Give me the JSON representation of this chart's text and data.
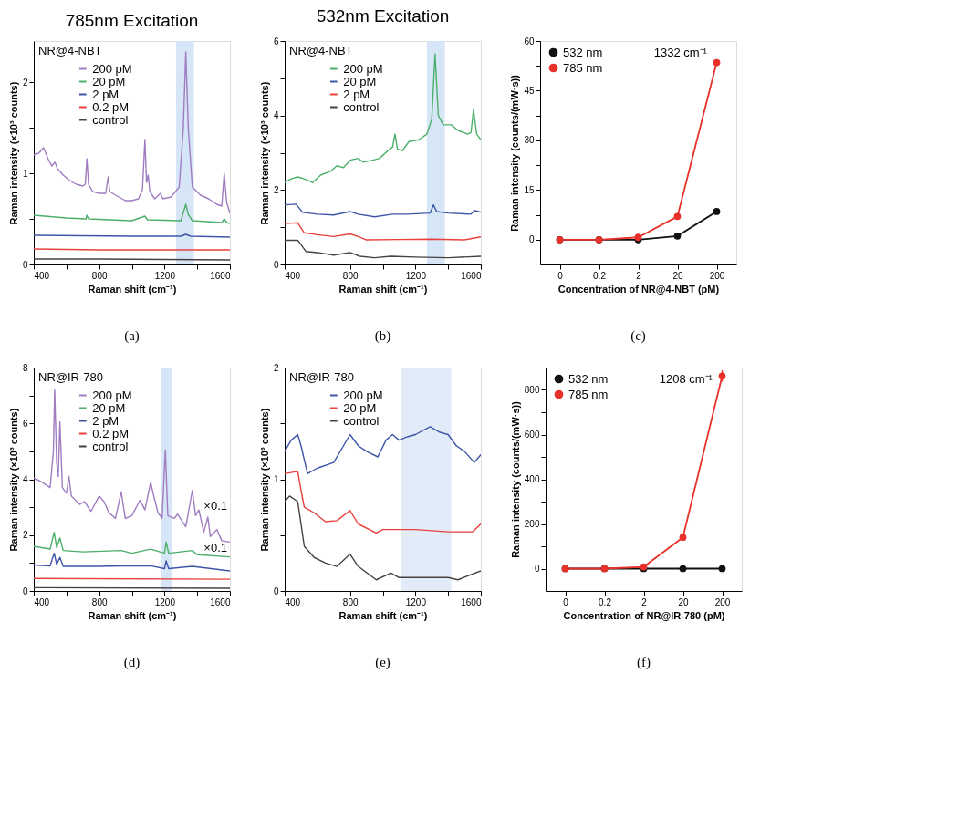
{
  "chart_data": [
    {
      "type": "line",
      "title": "785nm Excitation",
      "xlabel": "Raman shift (cm⁻¹)",
      "ylabel": "Raman intensity (×10³ counts)",
      "xlim": [
        400,
        1600
      ],
      "xticks": [
        400,
        {
          "value": 600,
          "label": null
        },
        800,
        {
          "value": 1000,
          "label": null
        },
        1200,
        {
          "value": 1400,
          "label": null
        },
        1600
      ],
      "ylim": [
        0,
        2.45
      ],
      "yticks": [
        0,
        {
          "value": 0.5,
          "label": null
        },
        1,
        {
          "value": 1.5,
          "label": null
        },
        2
      ],
      "legend": "top",
      "annotations": [
        "NR@4-NBT",
        "(a)"
      ],
      "bands": [
        {
          "axis": "x",
          "from": 1270,
          "to": 1380,
          "color": "#d6e6f7"
        }
      ],
      "series": [
        {
          "name": "200 pM",
          "color": "#a07cc0",
          "x": [
            400,
            430,
            460,
            490,
            510,
            530,
            545,
            580,
            620,
            660,
            700,
            715,
            725,
            735,
            760,
            800,
            840,
            855,
            865,
            900,
            960,
            1000,
            1040,
            1065,
            1080,
            1090,
            1100,
            1110,
            1140,
            1175,
            1190,
            1240,
            1290,
            1315,
            1330,
            1345,
            1370,
            1420,
            1470,
            1520,
            1550,
            1565,
            1580,
            1600
          ],
          "values": [
            1.2,
            1.22,
            1.28,
            1.15,
            1.08,
            1.12,
            1.05,
            0.98,
            0.92,
            0.88,
            0.86,
            0.88,
            1.16,
            0.88,
            0.8,
            0.78,
            0.78,
            0.96,
            0.8,
            0.76,
            0.7,
            0.7,
            0.72,
            0.82,
            1.37,
            0.9,
            0.98,
            0.8,
            0.72,
            0.78,
            0.72,
            0.74,
            0.85,
            1.5,
            2.33,
            1.5,
            0.85,
            0.76,
            0.72,
            0.66,
            0.64,
            1.0,
            0.68,
            0.56
          ]
        },
        {
          "name": "20 pM",
          "color": "#4caf6a",
          "x": [
            400,
            600,
            720,
            725,
            735,
            1000,
            1080,
            1095,
            1300,
            1320,
            1330,
            1345,
            1370,
            1550,
            1565,
            1580,
            1600
          ],
          "values": [
            0.54,
            0.51,
            0.5,
            0.54,
            0.5,
            0.48,
            0.53,
            0.49,
            0.48,
            0.6,
            0.66,
            0.55,
            0.48,
            0.46,
            0.5,
            0.46,
            0.45
          ]
        },
        {
          "name": "2 pM",
          "color": "#3f55a8",
          "x": [
            400,
            1000,
            1300,
            1330,
            1360,
            1600
          ],
          "values": [
            0.32,
            0.31,
            0.31,
            0.33,
            0.31,
            0.3
          ]
        },
        {
          "name": "0.2 pM",
          "color": "#e8413c",
          "x": [
            400,
            800,
            1600
          ],
          "values": [
            0.17,
            0.16,
            0.16
          ]
        },
        {
          "name": "control",
          "color": "#4a4040",
          "x": [
            400,
            800,
            1600
          ],
          "values": [
            0.06,
            0.06,
            0.05
          ]
        }
      ]
    },
    {
      "type": "line",
      "title": "532nm Excitation",
      "xlabel": "Raman shift (cm⁻¹)",
      "ylabel": "Raman intensity (×10³ counts)",
      "xlim": [
        400,
        1600
      ],
      "xticks": [
        400,
        {
          "value": 600,
          "label": null
        },
        800,
        {
          "value": 1000,
          "label": null
        },
        1200,
        {
          "value": 1400,
          "label": null
        },
        1600
      ],
      "ylim": [
        0,
        6
      ],
      "yticks": [
        0,
        {
          "value": 1,
          "label": null
        },
        2,
        {
          "value": 3,
          "label": null
        },
        4,
        {
          "value": 5,
          "label": null
        },
        6
      ],
      "legend": "top",
      "annotations": [
        "NR@4-NBT",
        "(b)"
      ],
      "bands": [
        {
          "axis": "x",
          "from": 1270,
          "to": 1380,
          "color": "#d6e6f7"
        }
      ],
      "series": [
        {
          "name": "200 pM",
          "color": "#4caf6a",
          "x": [
            400,
            440,
            480,
            520,
            570,
            620,
            680,
            720,
            760,
            800,
            850,
            880,
            940,
            980,
            1030,
            1060,
            1075,
            1090,
            1120,
            1160,
            1220,
            1270,
            1300,
            1320,
            1340,
            1370,
            1420,
            1460,
            1520,
            1540,
            1555,
            1575,
            1600
          ],
          "values": [
            2.2,
            2.3,
            2.35,
            2.3,
            2.2,
            2.4,
            2.5,
            2.65,
            2.6,
            2.8,
            2.85,
            2.75,
            2.8,
            2.85,
            3.05,
            3.15,
            3.5,
            3.1,
            3.05,
            3.3,
            3.35,
            3.5,
            3.9,
            5.65,
            4.0,
            3.75,
            3.75,
            3.6,
            3.5,
            3.55,
            4.15,
            3.5,
            3.35
          ]
        },
        {
          "name": "20 pM",
          "color": "#3f55a8",
          "x": [
            400,
            470,
            510,
            600,
            700,
            800,
            850,
            950,
            1060,
            1150,
            1290,
            1310,
            1330,
            1400,
            1540,
            1560,
            1600
          ],
          "values": [
            1.6,
            1.62,
            1.4,
            1.35,
            1.33,
            1.42,
            1.35,
            1.28,
            1.35,
            1.35,
            1.38,
            1.6,
            1.42,
            1.38,
            1.35,
            1.45,
            1.4
          ]
        },
        {
          "name": "2 pM",
          "color": "#e8413c",
          "x": [
            400,
            480,
            520,
            600,
            700,
            800,
            850,
            900,
            1100,
            1300,
            1500,
            1600
          ],
          "values": [
            1.1,
            1.12,
            0.85,
            0.8,
            0.75,
            0.82,
            0.75,
            0.66,
            0.67,
            0.68,
            0.66,
            0.74
          ]
        },
        {
          "name": "control",
          "color": "#4a4040",
          "x": [
            400,
            480,
            530,
            600,
            700,
            800,
            860,
            950,
            1050,
            1200,
            1400,
            1600
          ],
          "values": [
            0.65,
            0.65,
            0.35,
            0.32,
            0.25,
            0.32,
            0.22,
            0.18,
            0.22,
            0.2,
            0.18,
            0.22
          ]
        }
      ]
    },
    {
      "type": "line",
      "xlabel": "Concentration of NR@4-NBT (pM)",
      "ylabel": "Raman intensity (counts/(mW·s))",
      "categories": [
        "0",
        "0.2",
        "2",
        "20",
        "200"
      ],
      "ylim": [
        -7.5,
        60
      ],
      "yticks": [
        0,
        {
          "value": 7.5,
          "label": null
        },
        15,
        {
          "value": 22.5,
          "label": null
        },
        30,
        {
          "value": 37.5,
          "label": null
        },
        45,
        {
          "value": 52.5,
          "label": null
        },
        60
      ],
      "legend": "top left",
      "marker": "circle",
      "annotations": [
        "1332 cm⁻¹",
        "(c)"
      ],
      "series": [
        {
          "name": "532 nm",
          "color": "#111111",
          "values": [
            0,
            0,
            0,
            1.1,
            8.5
          ],
          "errors": [
            null,
            null,
            null,
            null,
            0.7
          ]
        },
        {
          "name": "785 nm",
          "color": "#e8312a",
          "values": [
            0,
            0,
            0.7,
            7,
            53.5
          ],
          "errors": [
            null,
            null,
            null,
            null,
            0.6
          ]
        }
      ]
    },
    {
      "type": "line",
      "xlabel": "Raman shift (cm⁻¹)",
      "ylabel": "Raman intensity (×10³ counts)",
      "xlim": [
        400,
        1600
      ],
      "xticks": [
        400,
        {
          "value": 600,
          "label": null
        },
        800,
        {
          "value": 1000,
          "label": null
        },
        1200,
        {
          "value": 1400,
          "label": null
        },
        1600
      ],
      "ylim": [
        0,
        8
      ],
      "yticks": [
        0,
        {
          "value": 1,
          "label": null
        },
        2,
        {
          "value": 3,
          "label": null
        },
        4,
        {
          "value": 5,
          "label": null
        },
        6,
        {
          "value": 7,
          "label": null
        },
        8
      ],
      "legend": "top",
      "annotations": [
        "NR@IR-780",
        "×0.1",
        "×0.1",
        "(d)"
      ],
      "bands": [
        {
          "axis": "x",
          "from": 1180,
          "to": 1245,
          "color": "#d6e6f7"
        }
      ],
      "series": [
        {
          "name": "200 pM",
          "color": "#a07cc0",
          "x": [
            400,
            450,
            500,
            520,
            528,
            540,
            550,
            560,
            575,
            600,
            615,
            630,
            680,
            710,
            750,
            800,
            830,
            860,
            900,
            935,
            960,
            1000,
            1050,
            1080,
            1115,
            1130,
            1160,
            1185,
            1205,
            1220,
            1260,
            1280,
            1330,
            1370,
            1390,
            1410,
            1440,
            1465,
            1480,
            1520,
            1550,
            1600
          ],
          "values": [
            4.05,
            3.9,
            3.7,
            5.0,
            7.2,
            4.6,
            4.1,
            6.05,
            3.7,
            3.5,
            4.1,
            3.4,
            3.1,
            3.2,
            2.85,
            3.4,
            3.2,
            2.8,
            2.6,
            3.55,
            2.6,
            2.7,
            3.25,
            2.9,
            3.9,
            3.5,
            2.8,
            2.6,
            5.05,
            2.7,
            2.6,
            2.75,
            2.3,
            3.6,
            2.7,
            2.9,
            2.1,
            2.65,
            1.95,
            2.2,
            1.8,
            1.75
          ]
        },
        {
          "name": "20 pM",
          "color": "#4caf6a",
          "x": [
            400,
            500,
            525,
            540,
            560,
            580,
            700,
            935,
            1000,
            1115,
            1200,
            1210,
            1225,
            1370,
            1400,
            1600
          ],
          "values": [
            1.6,
            1.5,
            2.1,
            1.55,
            1.9,
            1.45,
            1.4,
            1.45,
            1.35,
            1.5,
            1.35,
            1.75,
            1.35,
            1.45,
            1.3,
            1.22
          ]
        },
        {
          "name": "2 pM",
          "color": "#3f55a8",
          "x": [
            400,
            500,
            525,
            540,
            560,
            580,
            800,
            935,
            1115,
            1200,
            1210,
            1225,
            1370,
            1600
          ],
          "values": [
            0.93,
            0.9,
            1.35,
            0.95,
            1.2,
            0.88,
            0.88,
            0.9,
            0.9,
            0.8,
            1.08,
            0.8,
            0.88,
            0.72
          ]
        },
        {
          "name": "0.2 pM",
          "color": "#e8413c",
          "x": [
            400,
            1600
          ],
          "values": [
            0.45,
            0.42
          ]
        },
        {
          "name": "control",
          "color": "#4a4040",
          "x": [
            400,
            1600
          ],
          "values": [
            0.12,
            0.1
          ]
        }
      ]
    },
    {
      "type": "line",
      "xlabel": "Raman shift (cm⁻¹)",
      "ylabel": "Raman intensity (×10³ counts)",
      "xlim": [
        400,
        1600
      ],
      "xticks": [
        400,
        {
          "value": 600,
          "label": null
        },
        800,
        {
          "value": 1000,
          "label": null
        },
        1200,
        {
          "value": 1400,
          "label": null
        },
        1600
      ],
      "ylim": [
        0,
        2
      ],
      "yticks": [
        0,
        {
          "value": 0.5,
          "label": null
        },
        1,
        {
          "value": 1.5,
          "label": null
        },
        2
      ],
      "legend": "top",
      "annotations": [
        "NR@IR-780",
        "(e)"
      ],
      "bands": [
        {
          "axis": "x",
          "from": 1110,
          "to": 1420,
          "color": "#e1ecf8"
        }
      ],
      "series": [
        {
          "name": "200 pM",
          "color": "#3f55a8",
          "x": [
            400,
            440,
            480,
            500,
            540,
            600,
            700,
            760,
            800,
            850,
            900,
            970,
            1020,
            1060,
            1100,
            1150,
            1200,
            1290,
            1350,
            1400,
            1450,
            1500,
            1560,
            1600
          ],
          "values": [
            1.25,
            1.35,
            1.4,
            1.3,
            1.05,
            1.1,
            1.15,
            1.3,
            1.4,
            1.3,
            1.25,
            1.2,
            1.35,
            1.4,
            1.35,
            1.38,
            1.4,
            1.47,
            1.42,
            1.4,
            1.3,
            1.25,
            1.15,
            1.22
          ]
        },
        {
          "name": "20 pM",
          "color": "#e8413c",
          "x": [
            400,
            480,
            500,
            520,
            580,
            650,
            720,
            800,
            850,
            960,
            1000,
            1200,
            1400,
            1550,
            1600
          ],
          "values": [
            1.05,
            1.07,
            0.9,
            0.75,
            0.7,
            0.62,
            0.63,
            0.72,
            0.6,
            0.52,
            0.55,
            0.55,
            0.53,
            0.53,
            0.6
          ]
        },
        {
          "name": "control",
          "color": "#4a4040",
          "x": [
            400,
            430,
            480,
            520,
            580,
            650,
            720,
            800,
            850,
            960,
            1050,
            1100,
            1400,
            1460,
            1600
          ],
          "values": [
            0.8,
            0.85,
            0.8,
            0.4,
            0.3,
            0.25,
            0.22,
            0.33,
            0.22,
            0.1,
            0.16,
            0.12,
            0.12,
            0.1,
            0.18
          ]
        }
      ]
    },
    {
      "type": "line",
      "xlabel": "Concentration of NR@IR-780 (pM)",
      "ylabel": "Raman intensity (counts/(mW·s))",
      "categories": [
        "0",
        "0.2",
        "2",
        "20",
        "200"
      ],
      "ylim": [
        -100,
        900
      ],
      "yticks": [
        0,
        {
          "value": 100,
          "label": null
        },
        200,
        {
          "value": 300,
          "label": null
        },
        400,
        {
          "value": 500,
          "label": null
        },
        600,
        {
          "value": 700,
          "label": null
        },
        800
      ],
      "legend": "top left",
      "marker": "circle",
      "annotations": [
        "1208 cm⁻¹",
        "(f)"
      ],
      "series": [
        {
          "name": "532 nm",
          "color": "#111111",
          "values": [
            0,
            0,
            0,
            0,
            0
          ]
        },
        {
          "name": "785 nm",
          "color": "#e8312a",
          "values": [
            0,
            0,
            8,
            140,
            862
          ],
          "errors": [
            null,
            null,
            null,
            null,
            25
          ]
        }
      ]
    }
  ]
}
